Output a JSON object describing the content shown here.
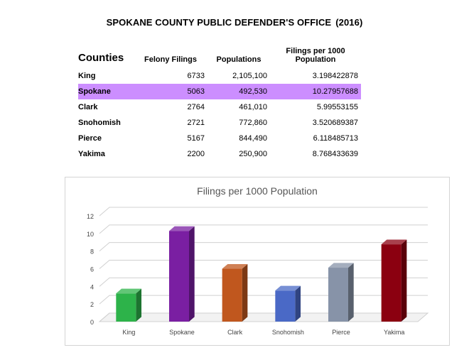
{
  "document": {
    "title": "SPOKANE COUNTY PUBLIC DEFENDER'S OFFICE",
    "year": "(2016)"
  },
  "table": {
    "headers": {
      "county": "Counties",
      "felony": "Felony Filings",
      "population": "Populations",
      "rate_line1": "Filings per 1000",
      "rate_line2": "Population"
    },
    "highlight_color": "#cc8eff",
    "rows": [
      {
        "county": "King",
        "felony": "6733",
        "population": "2,105,100",
        "rate": "3.198422878"
      },
      {
        "county": "Spokane",
        "felony": "5063",
        "population": "492,530",
        "rate": "10.27957688"
      },
      {
        "county": "Clark",
        "felony": "2764",
        "population": "461,010",
        "rate": "5.99553155"
      },
      {
        "county": "Snohomish",
        "felony": "2721",
        "population": "772,860",
        "rate": "3.520689387"
      },
      {
        "county": "Pierce",
        "felony": "5167",
        "population": "844,490",
        "rate": "6.118485713"
      },
      {
        "county": "Yakima",
        "felony": "2200",
        "population": "250,900",
        "rate": "8.768433639"
      }
    ]
  },
  "chart_data": {
    "type": "bar",
    "title": "Filings per 1000 Population",
    "categories": [
      "King",
      "Spokane",
      "Clark",
      "Snohomish",
      "Pierce",
      "Yakima"
    ],
    "values": [
      3.198422878,
      10.27957688,
      5.99553155,
      3.520689387,
      6.118485713,
      8.768433639
    ],
    "colors": [
      "#2db34a",
      "#7a1fa2",
      "#c0571e",
      "#4a69c6",
      "#8793a8",
      "#8b0010"
    ],
    "ylim": [
      0,
      12
    ],
    "yticks": [
      "0",
      "2",
      "4",
      "6",
      "8",
      "10",
      "12"
    ],
    "grid": true,
    "xlabel": "",
    "ylabel": ""
  }
}
